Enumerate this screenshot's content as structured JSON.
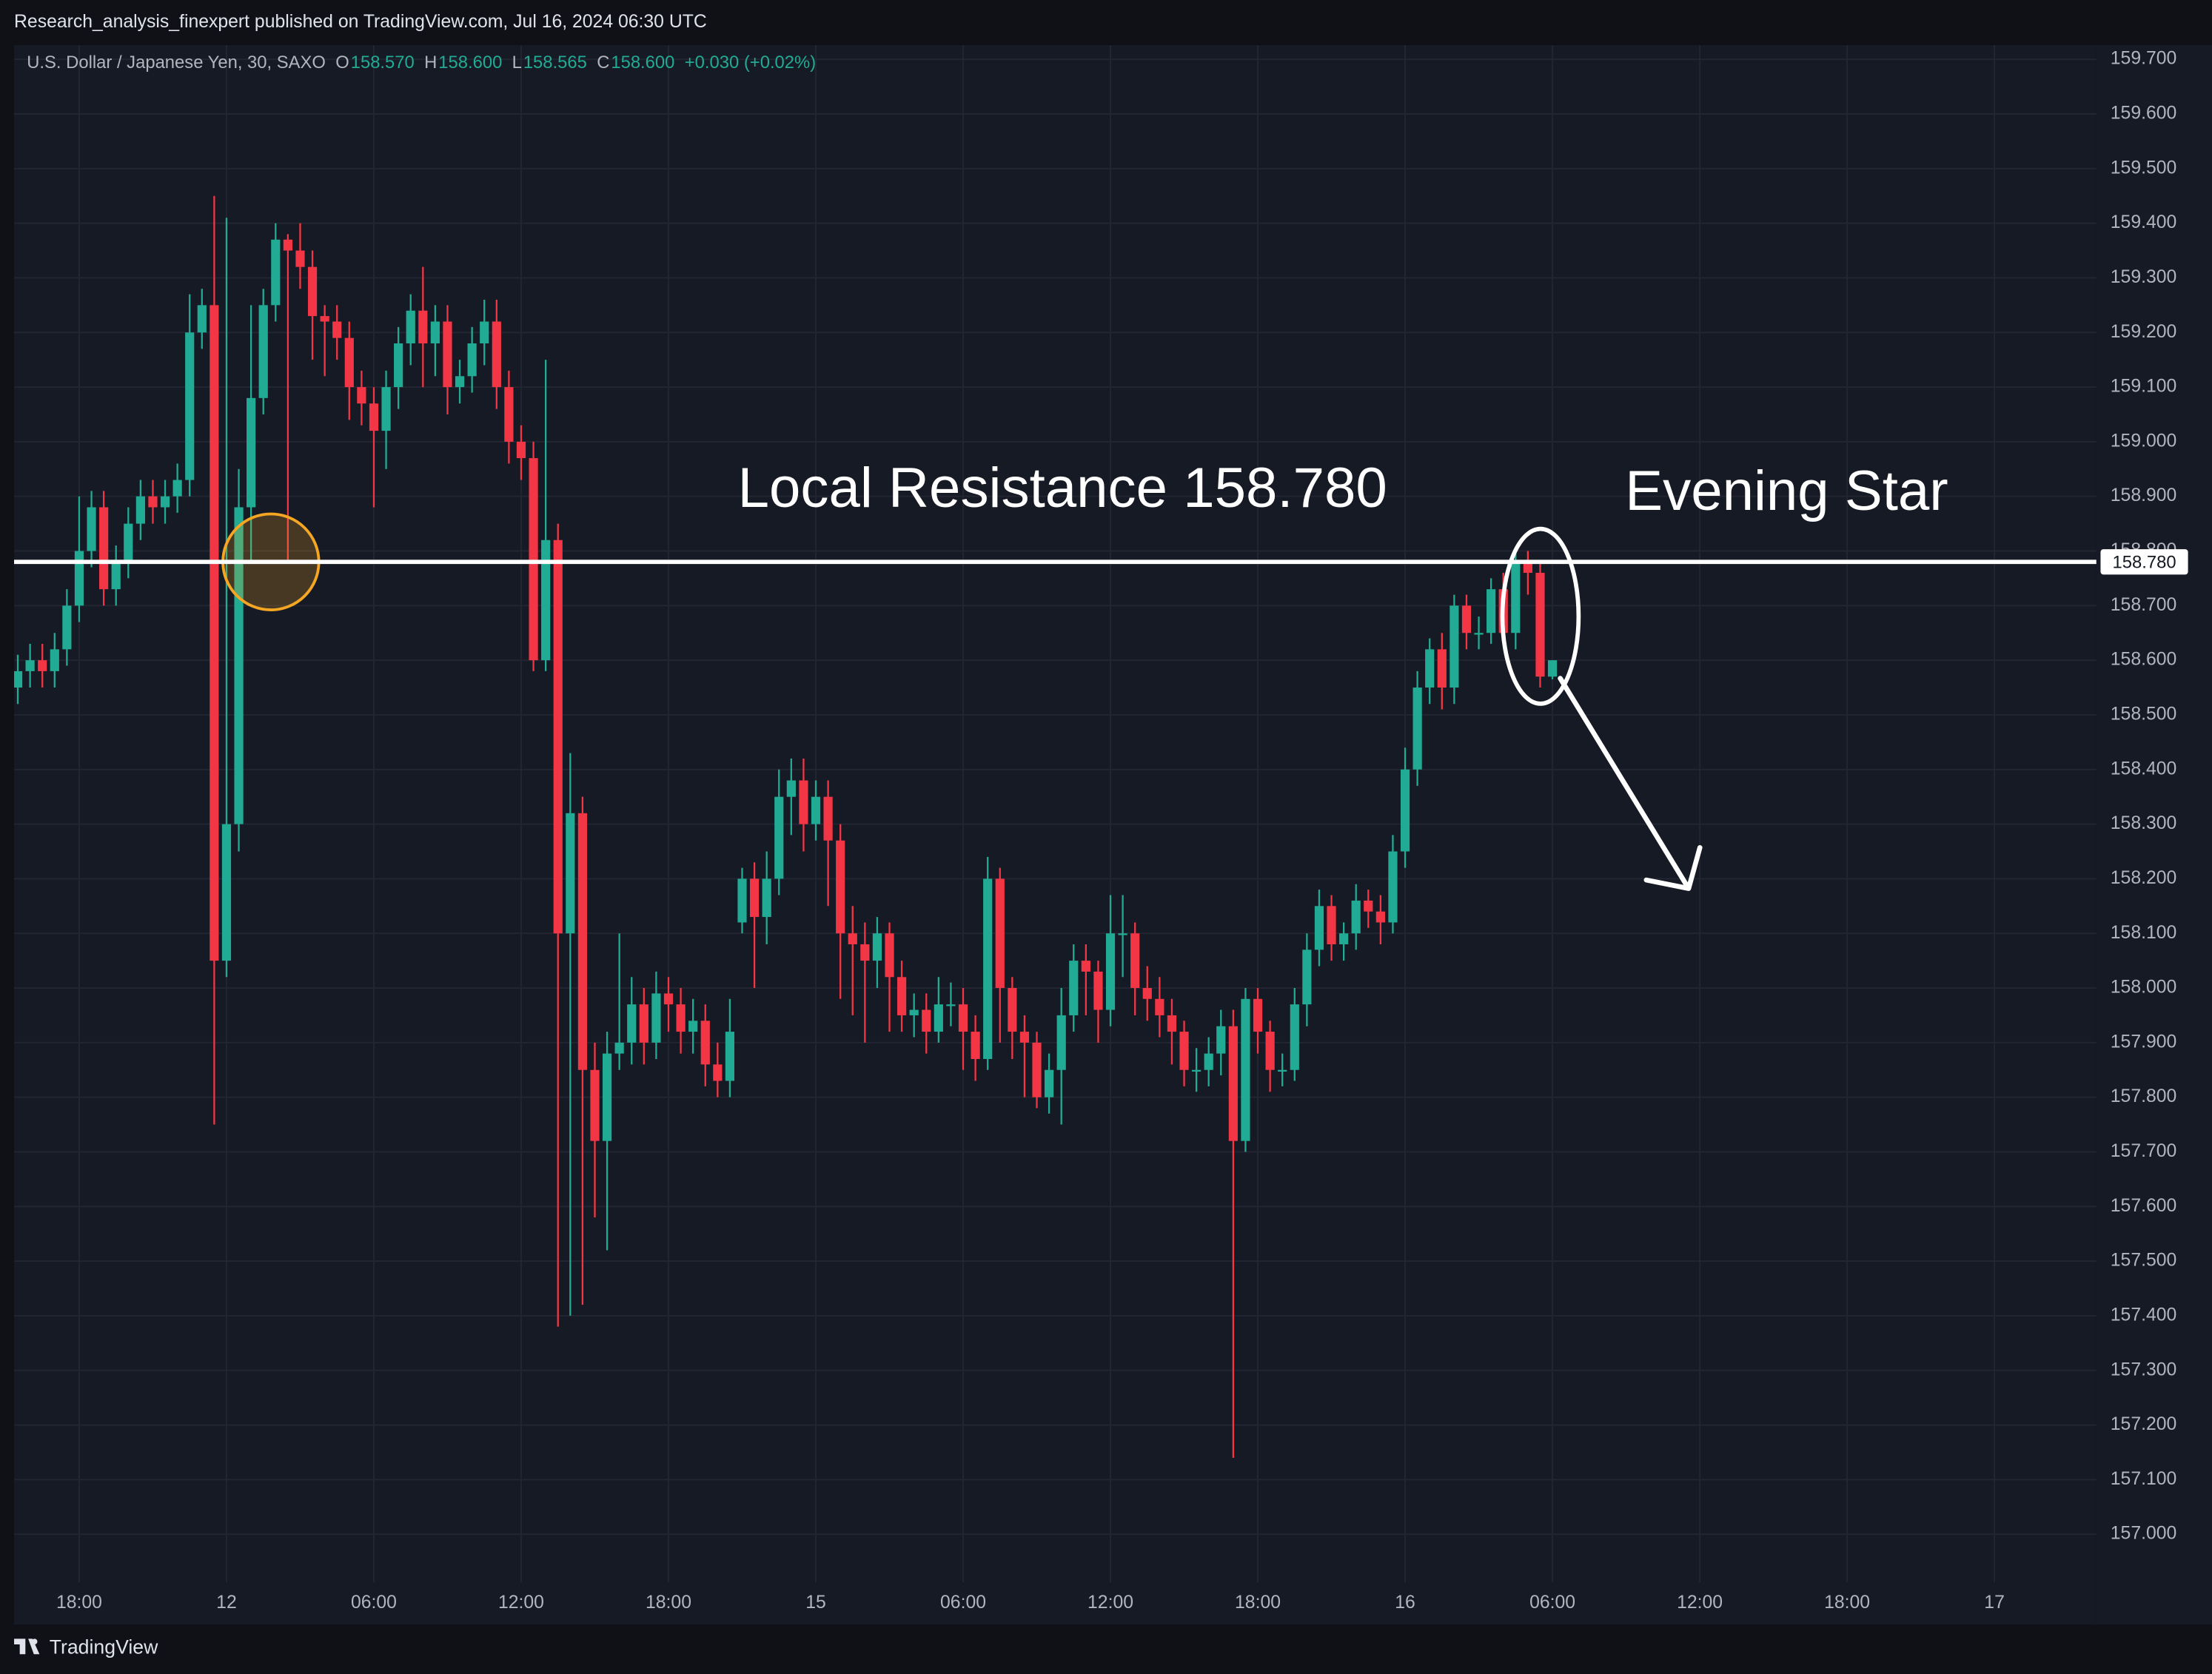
{
  "header": {
    "publisher": "Research_analysis_finexpert published on TradingView.com, Jul 16, 2024 06:30 UTC"
  },
  "footer": {
    "brand": "TradingView"
  },
  "chart_data": {
    "type": "candlestick",
    "legend": {
      "symbol": "U.S. Dollar / Japanese Yen, 30, SAXO",
      "items": [
        {
          "key": "O",
          "value": "158.570"
        },
        {
          "key": "H",
          "value": "158.600"
        },
        {
          "key": "L",
          "value": "158.565"
        },
        {
          "key": "C",
          "value": "158.600"
        }
      ],
      "change": "+0.030 (+0.02%)"
    },
    "up_color": "#22ab94",
    "down_color": "#f23645",
    "x": [
      -5,
      -4,
      -3,
      -2,
      -1,
      0,
      1,
      2,
      3,
      4,
      5,
      6,
      7,
      8,
      9,
      10,
      11,
      12,
      13,
      14,
      15,
      16,
      17,
      18,
      19,
      20,
      21,
      22,
      23,
      24,
      25,
      26,
      27,
      28,
      29,
      30,
      31,
      32,
      33,
      34,
      35,
      36,
      37,
      38,
      39,
      40,
      41,
      42,
      43,
      44,
      45,
      46,
      47,
      48,
      49,
      50,
      51,
      52,
      53,
      54,
      55,
      56,
      57,
      58,
      59,
      60,
      61,
      62,
      63,
      64,
      65,
      66,
      67,
      68,
      69,
      70,
      71,
      72,
      73,
      74,
      75,
      76,
      77,
      78,
      79,
      80,
      81,
      82,
      83,
      84,
      85,
      86,
      87,
      88,
      89,
      90,
      91,
      92,
      93,
      94,
      95,
      96,
      97,
      98,
      99,
      100,
      101,
      102,
      103,
      104,
      105,
      106,
      107,
      108,
      109,
      110,
      111,
      112,
      113,
      114,
      115,
      116,
      117,
      118,
      119,
      120
    ],
    "open": [
      158.55,
      158.58,
      158.6,
      158.58,
      158.62,
      158.7,
      158.8,
      158.88,
      158.73,
      158.78,
      158.85,
      158.9,
      158.88,
      158.9,
      158.93,
      159.2,
      159.25,
      158.05,
      158.3,
      158.88,
      159.08,
      159.25,
      159.37,
      159.35,
      159.32,
      159.23,
      159.22,
      159.19,
      159.1,
      159.07,
      159.02,
      159.1,
      159.18,
      159.24,
      159.18,
      159.22,
      159.1,
      159.12,
      159.18,
      159.22,
      159.1,
      159.0,
      158.97,
      158.6,
      158.82,
      158.1,
      158.32,
      157.85,
      157.72,
      157.88,
      157.9,
      157.97,
      157.9,
      157.99,
      157.97,
      157.92,
      157.94,
      157.86,
      157.83,
      158.12,
      158.2,
      158.13,
      158.2,
      158.35,
      158.38,
      158.3,
      158.35,
      158.27,
      158.1,
      158.08,
      158.05,
      158.1,
      158.02,
      157.95,
      157.96,
      157.92,
      157.97,
      157.97,
      157.92,
      157.87,
      158.2,
      158.0,
      157.92,
      157.9,
      157.8,
      157.85,
      157.95,
      158.05,
      158.03,
      157.96,
      158.1,
      158.1,
      158.0,
      157.98,
      157.95,
      157.92,
      157.85,
      157.85,
      157.88,
      157.93,
      157.72,
      157.98,
      157.92,
      157.85,
      157.85,
      157.97,
      158.07,
      158.15,
      158.08,
      158.1,
      158.16,
      158.14,
      158.12,
      158.25,
      158.4,
      158.55,
      158.62,
      158.55,
      158.7,
      158.65,
      158.65,
      158.73,
      158.65,
      158.78,
      158.76,
      158.57
    ],
    "high": [
      158.61,
      158.63,
      158.63,
      158.65,
      158.73,
      158.9,
      158.91,
      158.91,
      158.81,
      158.88,
      158.93,
      158.93,
      158.93,
      158.96,
      159.27,
      159.28,
      159.45,
      159.41,
      158.95,
      159.25,
      159.28,
      159.4,
      159.38,
      159.4,
      159.35,
      159.25,
      159.25,
      159.22,
      159.13,
      159.1,
      159.13,
      159.21,
      159.27,
      159.32,
      159.25,
      159.25,
      159.15,
      159.21,
      159.26,
      159.26,
      159.13,
      159.03,
      159.0,
      159.15,
      158.85,
      158.43,
      158.35,
      157.9,
      157.92,
      158.1,
      158.02,
      158.0,
      158.03,
      158.02,
      158.0,
      157.98,
      157.97,
      157.9,
      157.98,
      158.22,
      158.23,
      158.25,
      158.4,
      158.42,
      158.42,
      158.38,
      158.38,
      158.3,
      158.15,
      158.12,
      158.13,
      158.12,
      158.05,
      157.99,
      157.99,
      158.02,
      158.01,
      158.0,
      157.95,
      158.24,
      158.22,
      158.02,
      157.95,
      157.92,
      157.88,
      158.0,
      158.08,
      158.08,
      158.05,
      158.17,
      158.17,
      158.12,
      158.04,
      158.02,
      157.98,
      157.94,
      157.89,
      157.91,
      157.96,
      157.96,
      158.0,
      158.0,
      157.94,
      157.88,
      158.0,
      158.1,
      158.18,
      158.17,
      158.12,
      158.19,
      158.18,
      158.17,
      158.28,
      158.44,
      158.58,
      158.64,
      158.65,
      158.72,
      158.72,
      158.68,
      158.75,
      158.76,
      158.8,
      158.8,
      158.78,
      158.6
    ],
    "low": [
      158.52,
      158.55,
      158.55,
      158.55,
      158.59,
      158.67,
      158.77,
      158.7,
      158.7,
      158.75,
      158.82,
      158.85,
      158.85,
      158.87,
      158.9,
      159.17,
      157.75,
      158.02,
      158.25,
      158.78,
      159.05,
      159.22,
      158.78,
      159.28,
      159.15,
      159.12,
      159.15,
      159.04,
      159.03,
      158.88,
      158.95,
      159.06,
      159.14,
      159.1,
      159.12,
      159.05,
      159.07,
      159.09,
      159.14,
      159.06,
      158.96,
      158.93,
      158.58,
      158.58,
      157.38,
      157.4,
      157.42,
      157.58,
      157.52,
      157.85,
      157.86,
      157.86,
      157.87,
      157.92,
      157.88,
      157.88,
      157.82,
      157.8,
      157.8,
      158.1,
      158.0,
      158.08,
      158.17,
      158.28,
      158.25,
      158.27,
      158.15,
      157.98,
      157.95,
      157.9,
      158.0,
      157.92,
      157.92,
      157.91,
      157.88,
      157.9,
      157.93,
      157.85,
      157.83,
      157.85,
      157.9,
      157.87,
      157.8,
      157.78,
      157.77,
      157.75,
      157.92,
      157.95,
      157.9,
      157.93,
      158.02,
      157.95,
      157.94,
      157.91,
      157.86,
      157.82,
      157.81,
      157.82,
      157.84,
      157.14,
      157.7,
      157.88,
      157.81,
      157.82,
      157.83,
      157.93,
      158.04,
      158.05,
      158.05,
      158.07,
      158.11,
      158.08,
      158.1,
      158.22,
      158.37,
      158.52,
      158.51,
      158.52,
      158.62,
      158.62,
      158.63,
      158.63,
      158.62,
      158.72,
      158.55,
      158.565
    ],
    "close": [
      158.58,
      158.6,
      158.58,
      158.62,
      158.7,
      158.8,
      158.88,
      158.73,
      158.78,
      158.85,
      158.9,
      158.88,
      158.9,
      158.93,
      159.2,
      159.25,
      158.05,
      158.3,
      158.88,
      159.08,
      159.25,
      159.37,
      159.35,
      159.32,
      159.23,
      159.22,
      159.19,
      159.1,
      159.07,
      159.02,
      159.1,
      159.18,
      159.24,
      159.18,
      159.22,
      159.1,
      159.12,
      159.18,
      159.22,
      159.1,
      159.0,
      158.97,
      158.6,
      158.82,
      158.1,
      158.32,
      157.85,
      157.72,
      157.88,
      157.9,
      157.97,
      157.9,
      157.99,
      157.97,
      157.92,
      157.94,
      157.86,
      157.83,
      157.92,
      158.2,
      158.13,
      158.2,
      158.35,
      158.38,
      158.3,
      158.35,
      158.27,
      158.1,
      158.08,
      158.05,
      158.1,
      158.02,
      157.95,
      157.96,
      157.92,
      157.97,
      157.97,
      157.92,
      157.87,
      158.2,
      158.0,
      157.92,
      157.9,
      157.8,
      157.85,
      157.95,
      158.05,
      158.03,
      157.96,
      158.1,
      158.1,
      158.0,
      157.98,
      157.95,
      157.92,
      157.85,
      157.85,
      157.88,
      157.93,
      157.72,
      157.98,
      157.92,
      157.85,
      157.85,
      157.97,
      158.07,
      158.15,
      158.08,
      158.1,
      158.16,
      158.14,
      158.12,
      158.25,
      158.4,
      158.55,
      158.62,
      158.55,
      158.7,
      158.65,
      158.65,
      158.73,
      158.65,
      158.78,
      158.76,
      158.57,
      158.6
    ],
    "xlim": [
      -5.3,
      164.3
    ],
    "ylim": [
      156.912,
      159.726
    ],
    "xticks": [
      {
        "value": 0,
        "label": "18:00"
      },
      {
        "value": 12,
        "label": "12"
      },
      {
        "value": 24,
        "label": "06:00"
      },
      {
        "value": 36,
        "label": "12:00"
      },
      {
        "value": 48,
        "label": "18:00"
      },
      {
        "value": 60,
        "label": "15"
      },
      {
        "value": 72,
        "label": "06:00"
      },
      {
        "value": 84,
        "label": "12:00"
      },
      {
        "value": 96,
        "label": "18:00"
      },
      {
        "value": 108,
        "label": "16"
      },
      {
        "value": 120,
        "label": "06:00"
      },
      {
        "value": 132,
        "label": "12:00"
      },
      {
        "value": 144,
        "label": "18:00"
      },
      {
        "value": 156,
        "label": "17"
      }
    ],
    "yticks": [
      {
        "value": 159.7,
        "label": "159.700"
      },
      {
        "value": 159.6,
        "label": "159.600"
      },
      {
        "value": 159.5,
        "label": "159.500"
      },
      {
        "value": 159.4,
        "label": "159.400"
      },
      {
        "value": 159.3,
        "label": "159.300"
      },
      {
        "value": 159.2,
        "label": "159.200"
      },
      {
        "value": 159.1,
        "label": "159.100"
      },
      {
        "value": 159.0,
        "label": "159.000"
      },
      {
        "value": 158.9,
        "label": "158.900"
      },
      {
        "value": 158.8,
        "label": "158.800"
      },
      {
        "value": 158.7,
        "label": "158.700"
      },
      {
        "value": 158.6,
        "label": "158.600"
      },
      {
        "value": 158.5,
        "label": "158.500"
      },
      {
        "value": 158.4,
        "label": "158.400"
      },
      {
        "value": 158.3,
        "label": "158.300"
      },
      {
        "value": 158.2,
        "label": "158.200"
      },
      {
        "value": 158.1,
        "label": "158.100"
      },
      {
        "value": 158.0,
        "label": "158.000"
      },
      {
        "value": 157.9,
        "label": "157.900"
      },
      {
        "value": 157.8,
        "label": "157.800"
      },
      {
        "value": 157.7,
        "label": "157.700"
      },
      {
        "value": 157.6,
        "label": "157.600"
      },
      {
        "value": 157.5,
        "label": "157.500"
      },
      {
        "value": 157.4,
        "label": "157.400"
      },
      {
        "value": 157.3,
        "label": "157.300"
      },
      {
        "value": 157.2,
        "label": "157.200"
      },
      {
        "value": 157.1,
        "label": "157.100"
      },
      {
        "value": 157.0,
        "label": "157.000"
      }
    ],
    "grid": true,
    "hline": {
      "value": 158.78,
      "label": "158.780",
      "color": "#ffffff"
    },
    "annotations": {
      "resistance": "Local Resistance 158.780",
      "pattern": "Evening Star"
    }
  }
}
